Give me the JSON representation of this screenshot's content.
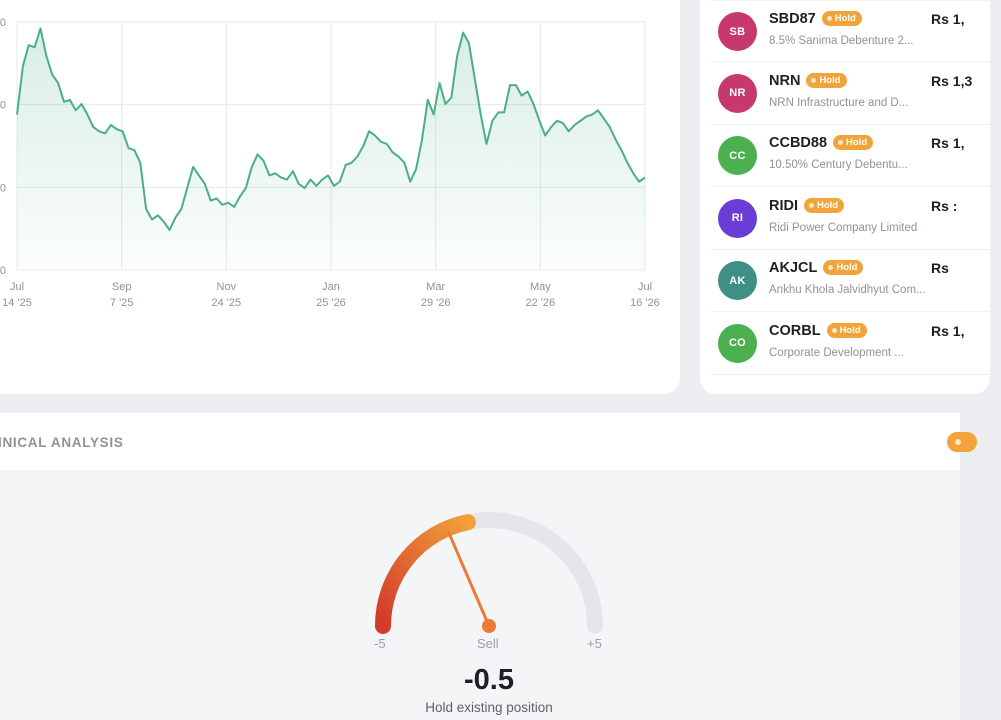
{
  "chart": {
    "y_tick_labels": [
      "0",
      "0",
      "0",
      "0"
    ],
    "x_ticks": [
      {
        "month": "Jul",
        "day": "14 '25"
      },
      {
        "month": "Sep",
        "day": "7 '25"
      },
      {
        "month": "Nov",
        "day": "24 '25"
      },
      {
        "month": "Jan",
        "day": "25 '26"
      },
      {
        "month": "Mar",
        "day": "29 '26"
      },
      {
        "month": "May",
        "day": "22 '26"
      },
      {
        "month": "Jul",
        "day": "16 '26"
      }
    ],
    "line_color": "#4caf84"
  },
  "chart_data": {
    "type": "area",
    "x_range": [
      "2025-07-14",
      "2026-07-16"
    ],
    "grid": true,
    "series": [
      {
        "values": [
          0.55,
          0.78,
          0.88,
          0.87,
          0.96,
          0.83,
          0.74,
          0.7,
          0.61,
          0.62,
          0.57,
          0.6,
          0.55,
          0.49,
          0.47,
          0.46,
          0.5,
          0.48,
          0.47,
          0.39,
          0.38,
          0.32,
          0.1,
          0.05,
          0.07,
          0.04,
          0.0,
          0.06,
          0.1,
          0.2,
          0.3,
          0.26,
          0.22,
          0.14,
          0.15,
          0.12,
          0.13,
          0.11,
          0.16,
          0.2,
          0.3,
          0.36,
          0.33,
          0.26,
          0.27,
          0.25,
          0.24,
          0.28,
          0.22,
          0.2,
          0.24,
          0.21,
          0.24,
          0.26,
          0.21,
          0.23,
          0.31,
          0.32,
          0.35,
          0.4,
          0.47,
          0.45,
          0.42,
          0.41,
          0.37,
          0.35,
          0.32,
          0.23,
          0.29,
          0.43,
          0.62,
          0.55,
          0.7,
          0.6,
          0.63,
          0.83,
          0.94,
          0.89,
          0.72,
          0.55,
          0.41,
          0.52,
          0.56,
          0.56,
          0.69,
          0.69,
          0.64,
          0.66,
          0.6,
          0.52,
          0.45,
          0.49,
          0.52,
          0.51,
          0.47,
          0.5,
          0.52,
          0.54,
          0.55,
          0.57,
          0.53,
          0.49,
          0.43,
          0.38,
          0.32,
          0.27,
          0.23,
          0.25
        ]
      }
    ]
  },
  "holdings": [
    {
      "initials": "SB",
      "color": "#c7396e",
      "symbol": "SBD87",
      "badge": "Hold",
      "desc": "8.5% Sanima Debenture 2...",
      "price": "Rs 1,"
    },
    {
      "initials": "NR",
      "color": "#c7396e",
      "symbol": "NRN",
      "badge": "Hold",
      "desc": "NRN Infrastructure and D...",
      "price": "Rs 1,3"
    },
    {
      "initials": "CC",
      "color": "#4caf50",
      "symbol": "CCBD88",
      "badge": "Hold",
      "desc": "10.50% Century Debentu...",
      "price": "Rs 1,"
    },
    {
      "initials": "RI",
      "color": "#6b3dd6",
      "symbol": "RIDI",
      "badge": "Hold",
      "desc": "Ridi Power Company Limited",
      "price": "Rs :"
    },
    {
      "initials": "AK",
      "color": "#3f8f86",
      "symbol": "AKJCL",
      "badge": "Hold",
      "desc": "Ankhu Khola Jalvidhyut Com...",
      "price": "Rs"
    },
    {
      "initials": "CO",
      "color": "#4caf50",
      "symbol": "CORBL",
      "badge": "Hold",
      "desc": "Corporate Development ...",
      "price": "Rs 1,"
    }
  ],
  "technical": {
    "title": "HNICAL ANALYSIS",
    "gauge": {
      "min_label": "-5",
      "max_label": "+5",
      "zone_label": "Sell",
      "score": "-0.5",
      "verdict": "Hold existing position",
      "value": -0.5,
      "fill_start": -5,
      "fill_end": 0
    }
  }
}
